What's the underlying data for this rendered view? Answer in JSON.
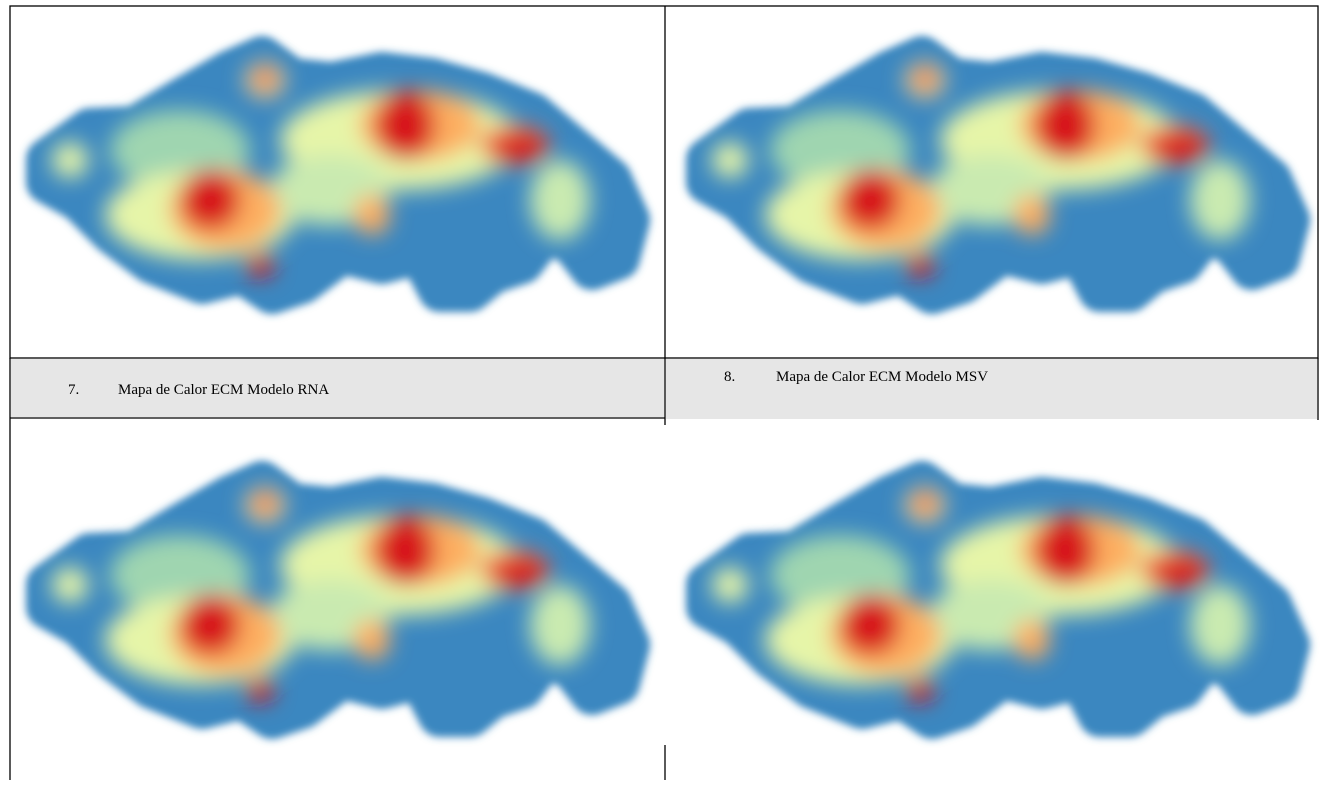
{
  "panels": [
    {
      "number": "7.",
      "caption": "Mapa de Calor ECM Modelo RNA"
    },
    {
      "number": "8.",
      "caption": "Mapa de Calor ECM Modelo MSV"
    }
  ]
}
